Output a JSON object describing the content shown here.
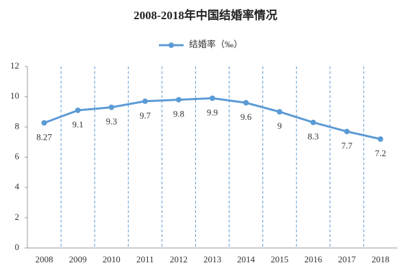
{
  "chart_data": {
    "type": "line",
    "title": "2008-2018年中国结婚率情况",
    "categories": [
      "2008",
      "2009",
      "2010",
      "2011",
      "2012",
      "2013",
      "2014",
      "2015",
      "2016",
      "2017",
      "2018"
    ],
    "series": [
      {
        "name": "结婚率（‰）",
        "color": "#5b9bd5",
        "values": [
          8.27,
          9.1,
          9.3,
          9.7,
          9.8,
          9.9,
          9.6,
          9,
          8.3,
          7.7,
          7.2
        ]
      }
    ],
    "ylim": [
      0,
      12
    ],
    "yticks": [
      0,
      2,
      4,
      6,
      8,
      10,
      12
    ],
    "grid": true,
    "legend": "top"
  }
}
